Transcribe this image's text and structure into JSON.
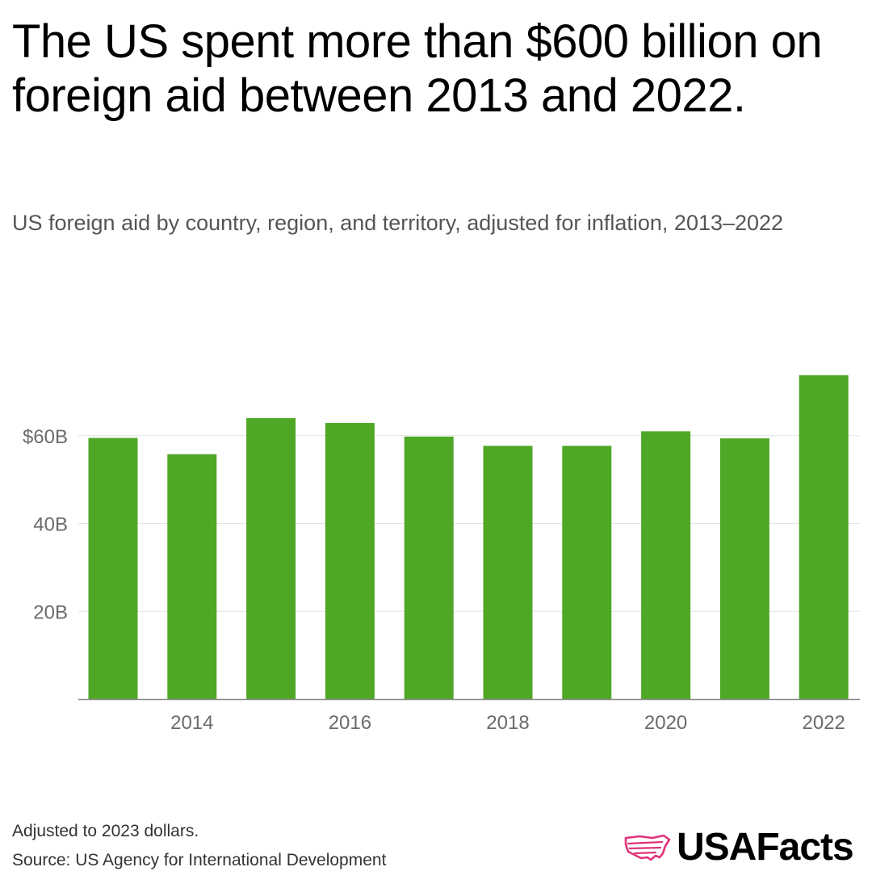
{
  "header": {
    "title": "The US spent more than $600 billion on foreign aid between 2013 and 2022.",
    "subtitle": "US foreign aid by country, region, and territory, adjusted for inflation, 2013–2022"
  },
  "footer": {
    "note": "Adjusted to 2023 dollars.",
    "source": "Source: US Agency for International Development",
    "logo_text": "USAFacts"
  },
  "colors": {
    "bar": "#4fa726",
    "grid": "#e3e3e3",
    "axis": "#888888",
    "tick_text": "#6b6b6b",
    "logo_accent": "#e0337a"
  },
  "chart_data": {
    "type": "bar",
    "title": "The US spent more than $600 billion on foreign aid between 2013 and 2022.",
    "subtitle": "US foreign aid by country, region, and territory, adjusted for inflation, 2013–2022",
    "unit": "billions of 2023 dollars",
    "categories": [
      "2013",
      "2014",
      "2015",
      "2016",
      "2017",
      "2018",
      "2019",
      "2020",
      "2021",
      "2022"
    ],
    "values": [
      59.5,
      55.8,
      64.0,
      62.9,
      59.8,
      57.7,
      57.7,
      61.0,
      59.4,
      73.8
    ],
    "x_tick_labels": [
      "2014",
      "2016",
      "2018",
      "2020",
      "2022"
    ],
    "y_ticks": [
      {
        "value": 20,
        "label": "20B"
      },
      {
        "value": 40,
        "label": "40B"
      },
      {
        "value": 60,
        "label": "$60B"
      }
    ],
    "ylim": [
      0,
      80
    ],
    "grid": true,
    "xlabel": "",
    "ylabel": ""
  }
}
